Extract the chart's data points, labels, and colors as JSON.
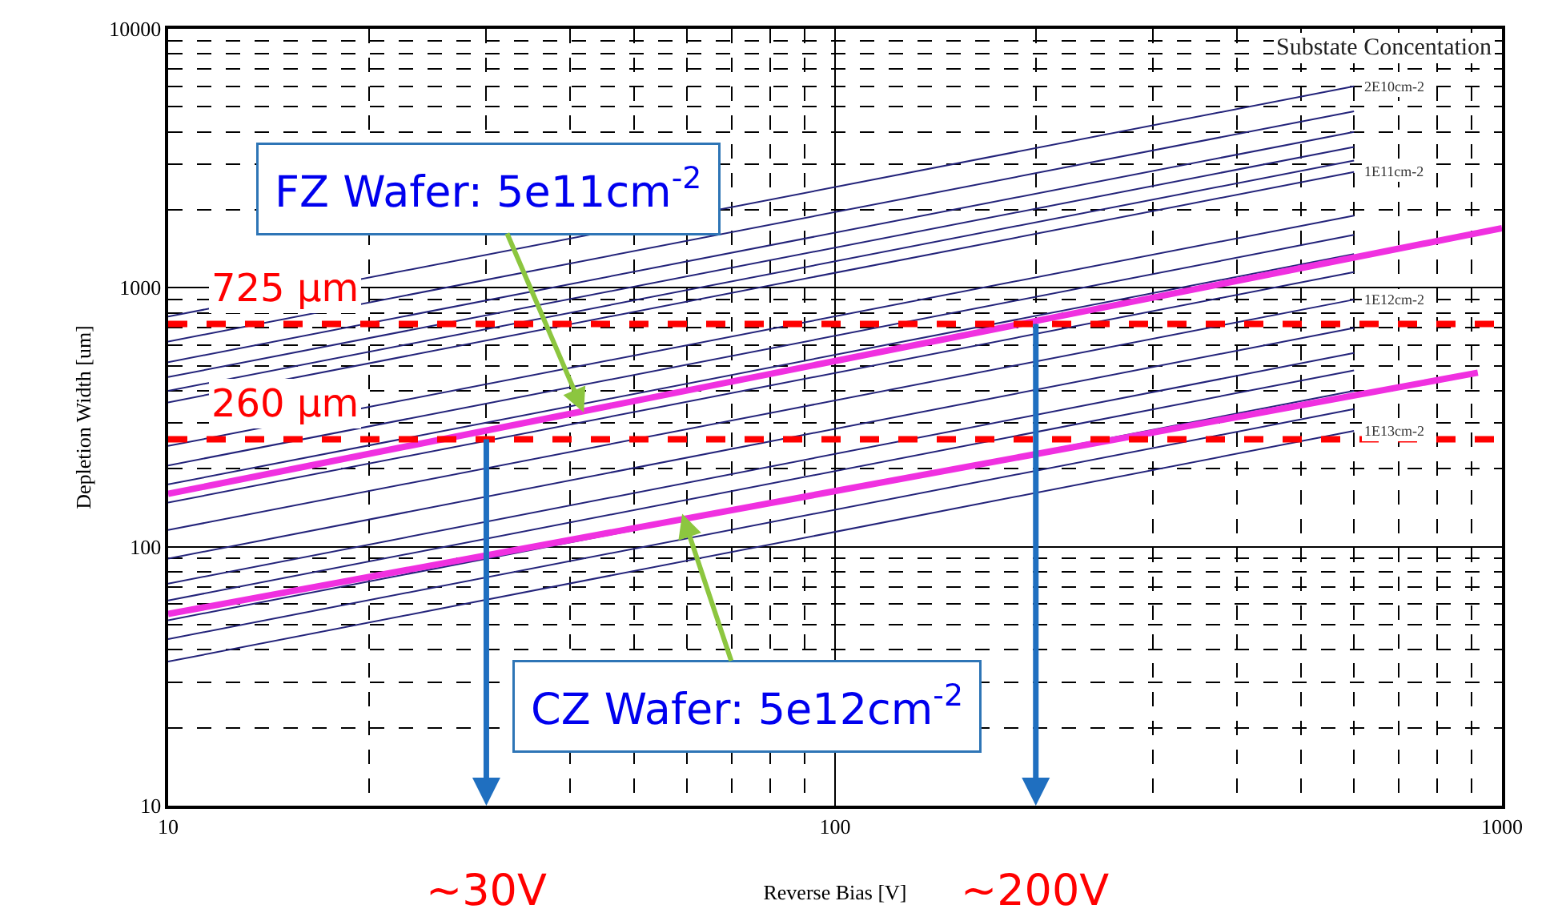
{
  "chart_data": {
    "type": "line",
    "title": "Substate Concentation",
    "xlabel": "Reverse Bias [V]",
    "ylabel": "Depletion Width [um]",
    "log": "xy",
    "xlim": [
      10,
      1000
    ],
    "ylim": [
      10,
      10000
    ],
    "xticks": [
      10,
      100,
      1000
    ],
    "yticks": [
      10,
      100,
      1000,
      10000
    ],
    "grid": true,
    "legend": false,
    "marker": "none",
    "series": [
      {
        "name": "2E10cm-2",
        "color": "#23237a",
        "x": [
          10,
          600
        ],
        "values": [
          774,
          6000
        ]
      },
      {
        "color": "#23237a",
        "x": [
          10,
          600
        ],
        "values": [
          620,
          4800
        ]
      },
      {
        "color": "#23237a",
        "x": [
          10,
          600
        ],
        "values": [
          516,
          4000
        ]
      },
      {
        "color": "#23237a",
        "x": [
          10,
          600
        ],
        "values": [
          452,
          3500
        ]
      },
      {
        "color": "#23237a",
        "x": [
          10,
          600
        ],
        "values": [
          400,
          3100
        ]
      },
      {
        "name": "1E11cm-2",
        "color": "#23237a",
        "x": [
          10,
          600
        ],
        "values": [
          361,
          2800
        ]
      },
      {
        "color": "#23237a",
        "x": [
          10,
          600
        ],
        "values": [
          245,
          1900
        ]
      },
      {
        "color": "#23237a",
        "x": [
          10,
          600
        ],
        "values": [
          206,
          1600
        ]
      },
      {
        "color": "#23237a",
        "x": [
          10,
          600
        ],
        "values": [
          174,
          1350
        ]
      },
      {
        "color": "#23237a",
        "x": [
          10,
          600
        ],
        "values": [
          148,
          1150
        ]
      },
      {
        "name": "1E12cm-2",
        "color": "#23237a",
        "x": [
          10,
          600
        ],
        "values": [
          116,
          900
        ]
      },
      {
        "color": "#23237a",
        "x": [
          10,
          600
        ],
        "values": [
          90,
          700
        ]
      },
      {
        "color": "#23237a",
        "x": [
          10,
          600
        ],
        "values": [
          72,
          560
        ]
      },
      {
        "color": "#23237a",
        "x": [
          10,
          600
        ],
        "values": [
          62,
          480
        ]
      },
      {
        "color": "#23237a",
        "x": [
          10,
          600
        ],
        "values": [
          52,
          400
        ]
      },
      {
        "color": "#23237a",
        "x": [
          10,
          600
        ],
        "values": [
          44,
          340
        ]
      },
      {
        "name": "1E13cm-2",
        "color": "#23237a",
        "x": [
          10,
          600
        ],
        "values": [
          36,
          280
        ]
      },
      {
        "color": "#f030e0",
        "x": [
          10,
          1000
        ],
        "values": [
          160,
          1700
        ]
      },
      {
        "color": "#f030e0",
        "x": [
          10,
          920
        ],
        "values": [
          55,
          470
        ]
      }
    ],
    "ref_lines": [
      {
        "axis": "y",
        "value": 725,
        "label": "725 μm",
        "color": "#ff0000",
        "line_style": "dashed"
      },
      {
        "axis": "y",
        "value": 260,
        "label": "260 μm",
        "color": "#ff0000",
        "line_style": "dashed"
      }
    ],
    "annotations": [
      {
        "text": "FZ Wafer: 5e11cm$^{-2}$",
        "x": 42,
        "y": 330
      },
      {
        "text": "CZ Wafer: 5e12cm$^{-2}$",
        "x": 59,
        "y": 134
      },
      {
        "text": "~30V",
        "x": 30,
        "y": 260
      },
      {
        "text": "~200V",
        "x": 200,
        "y": 725
      }
    ]
  }
}
